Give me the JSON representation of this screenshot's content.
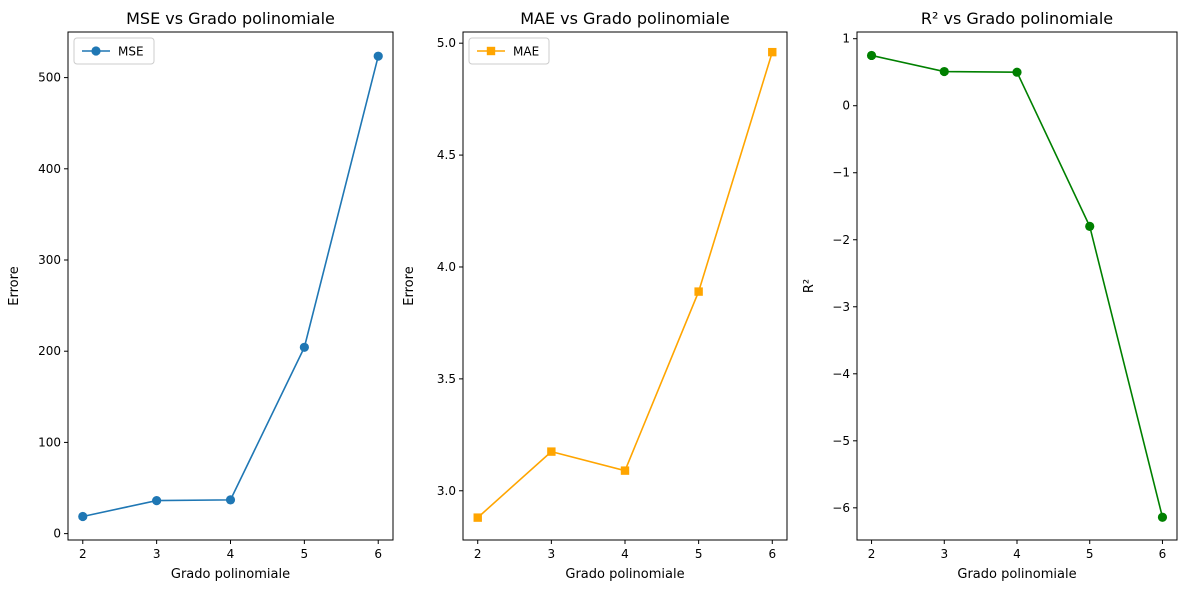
{
  "chart_data": [
    {
      "type": "line",
      "title": "MSE vs Grado polinomiale",
      "xlabel": "Grado polinomiale",
      "ylabel": "Errore",
      "x": [
        2,
        3,
        4,
        5,
        6
      ],
      "xlim": [
        1.8,
        6.2
      ],
      "ylim": [
        -7,
        550
      ],
      "xticks": [
        2,
        3,
        4,
        5,
        6
      ],
      "yticks": [
        0,
        100,
        200,
        300,
        400,
        500
      ],
      "legend_position": "top-left",
      "marker": "circle",
      "series": [
        {
          "name": "MSE",
          "color": "#1f77b4",
          "values": [
            18.8,
            36.2,
            37.0,
            204.3,
            523.5
          ]
        }
      ]
    },
    {
      "type": "line",
      "title": "MAE vs Grado polinomiale",
      "xlabel": "Grado polinomiale",
      "ylabel": "Errore",
      "x": [
        2,
        3,
        4,
        5,
        6
      ],
      "xlim": [
        1.8,
        6.2
      ],
      "ylim": [
        2.78,
        5.05
      ],
      "xticks": [
        2,
        3,
        4,
        5,
        6
      ],
      "yticks": [
        3.0,
        3.5,
        4.0,
        4.5,
        5.0
      ],
      "legend_position": "top-left",
      "marker": "square",
      "series": [
        {
          "name": "MAE",
          "color": "#ffa500",
          "values": [
            2.88,
            3.175,
            3.09,
            3.89,
            4.96
          ]
        }
      ]
    },
    {
      "type": "line",
      "title": "R² vs Grado polinomiale",
      "xlabel": "Grado polinomiale",
      "ylabel": "R²",
      "x": [
        2,
        3,
        4,
        5,
        6
      ],
      "xlim": [
        1.8,
        6.2
      ],
      "ylim": [
        -6.48,
        1.1
      ],
      "xticks": [
        2,
        3,
        4,
        5,
        6
      ],
      "yticks": [
        1,
        0,
        -1,
        -2,
        -3,
        -4,
        -5,
        -6
      ],
      "marker": "circle",
      "series": [
        {
          "color": "#008000",
          "values": [
            0.75,
            0.51,
            0.5,
            -1.8,
            -6.14
          ]
        }
      ]
    }
  ]
}
